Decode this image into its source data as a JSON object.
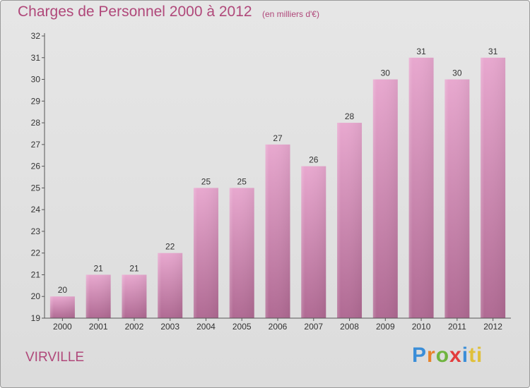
{
  "title": "Charges de Personnel 2000 à 2012",
  "subtitle": "(en milliers d'€)",
  "town": "VIRVILLE",
  "logo": {
    "text": "Proxiti",
    "letters": [
      "P",
      "r",
      "o",
      "x",
      "i",
      "ti"
    ]
  },
  "colors": {
    "title": "#b0487a",
    "bar_top": "#e8a8cf",
    "bar_bottom": "#b06a93",
    "axis": "#555555"
  },
  "chart_data": {
    "type": "bar",
    "categories": [
      "2000",
      "2001",
      "2002",
      "2003",
      "2004",
      "2005",
      "2006",
      "2007",
      "2008",
      "2009",
      "2010",
      "2011",
      "2012"
    ],
    "values": [
      20,
      21,
      21,
      22,
      25,
      25,
      27,
      26,
      28,
      30,
      31,
      30,
      31
    ],
    "data_labels": [
      "20",
      "21",
      "21",
      "22",
      "25",
      "25",
      "27",
      "26",
      "28",
      "30",
      "31",
      "30",
      "31"
    ],
    "y_ticks": [
      19,
      20,
      21,
      22,
      23,
      24,
      25,
      26,
      27,
      28,
      29,
      30,
      31,
      32
    ],
    "ylim": [
      19,
      32
    ],
    "grid": false
  }
}
